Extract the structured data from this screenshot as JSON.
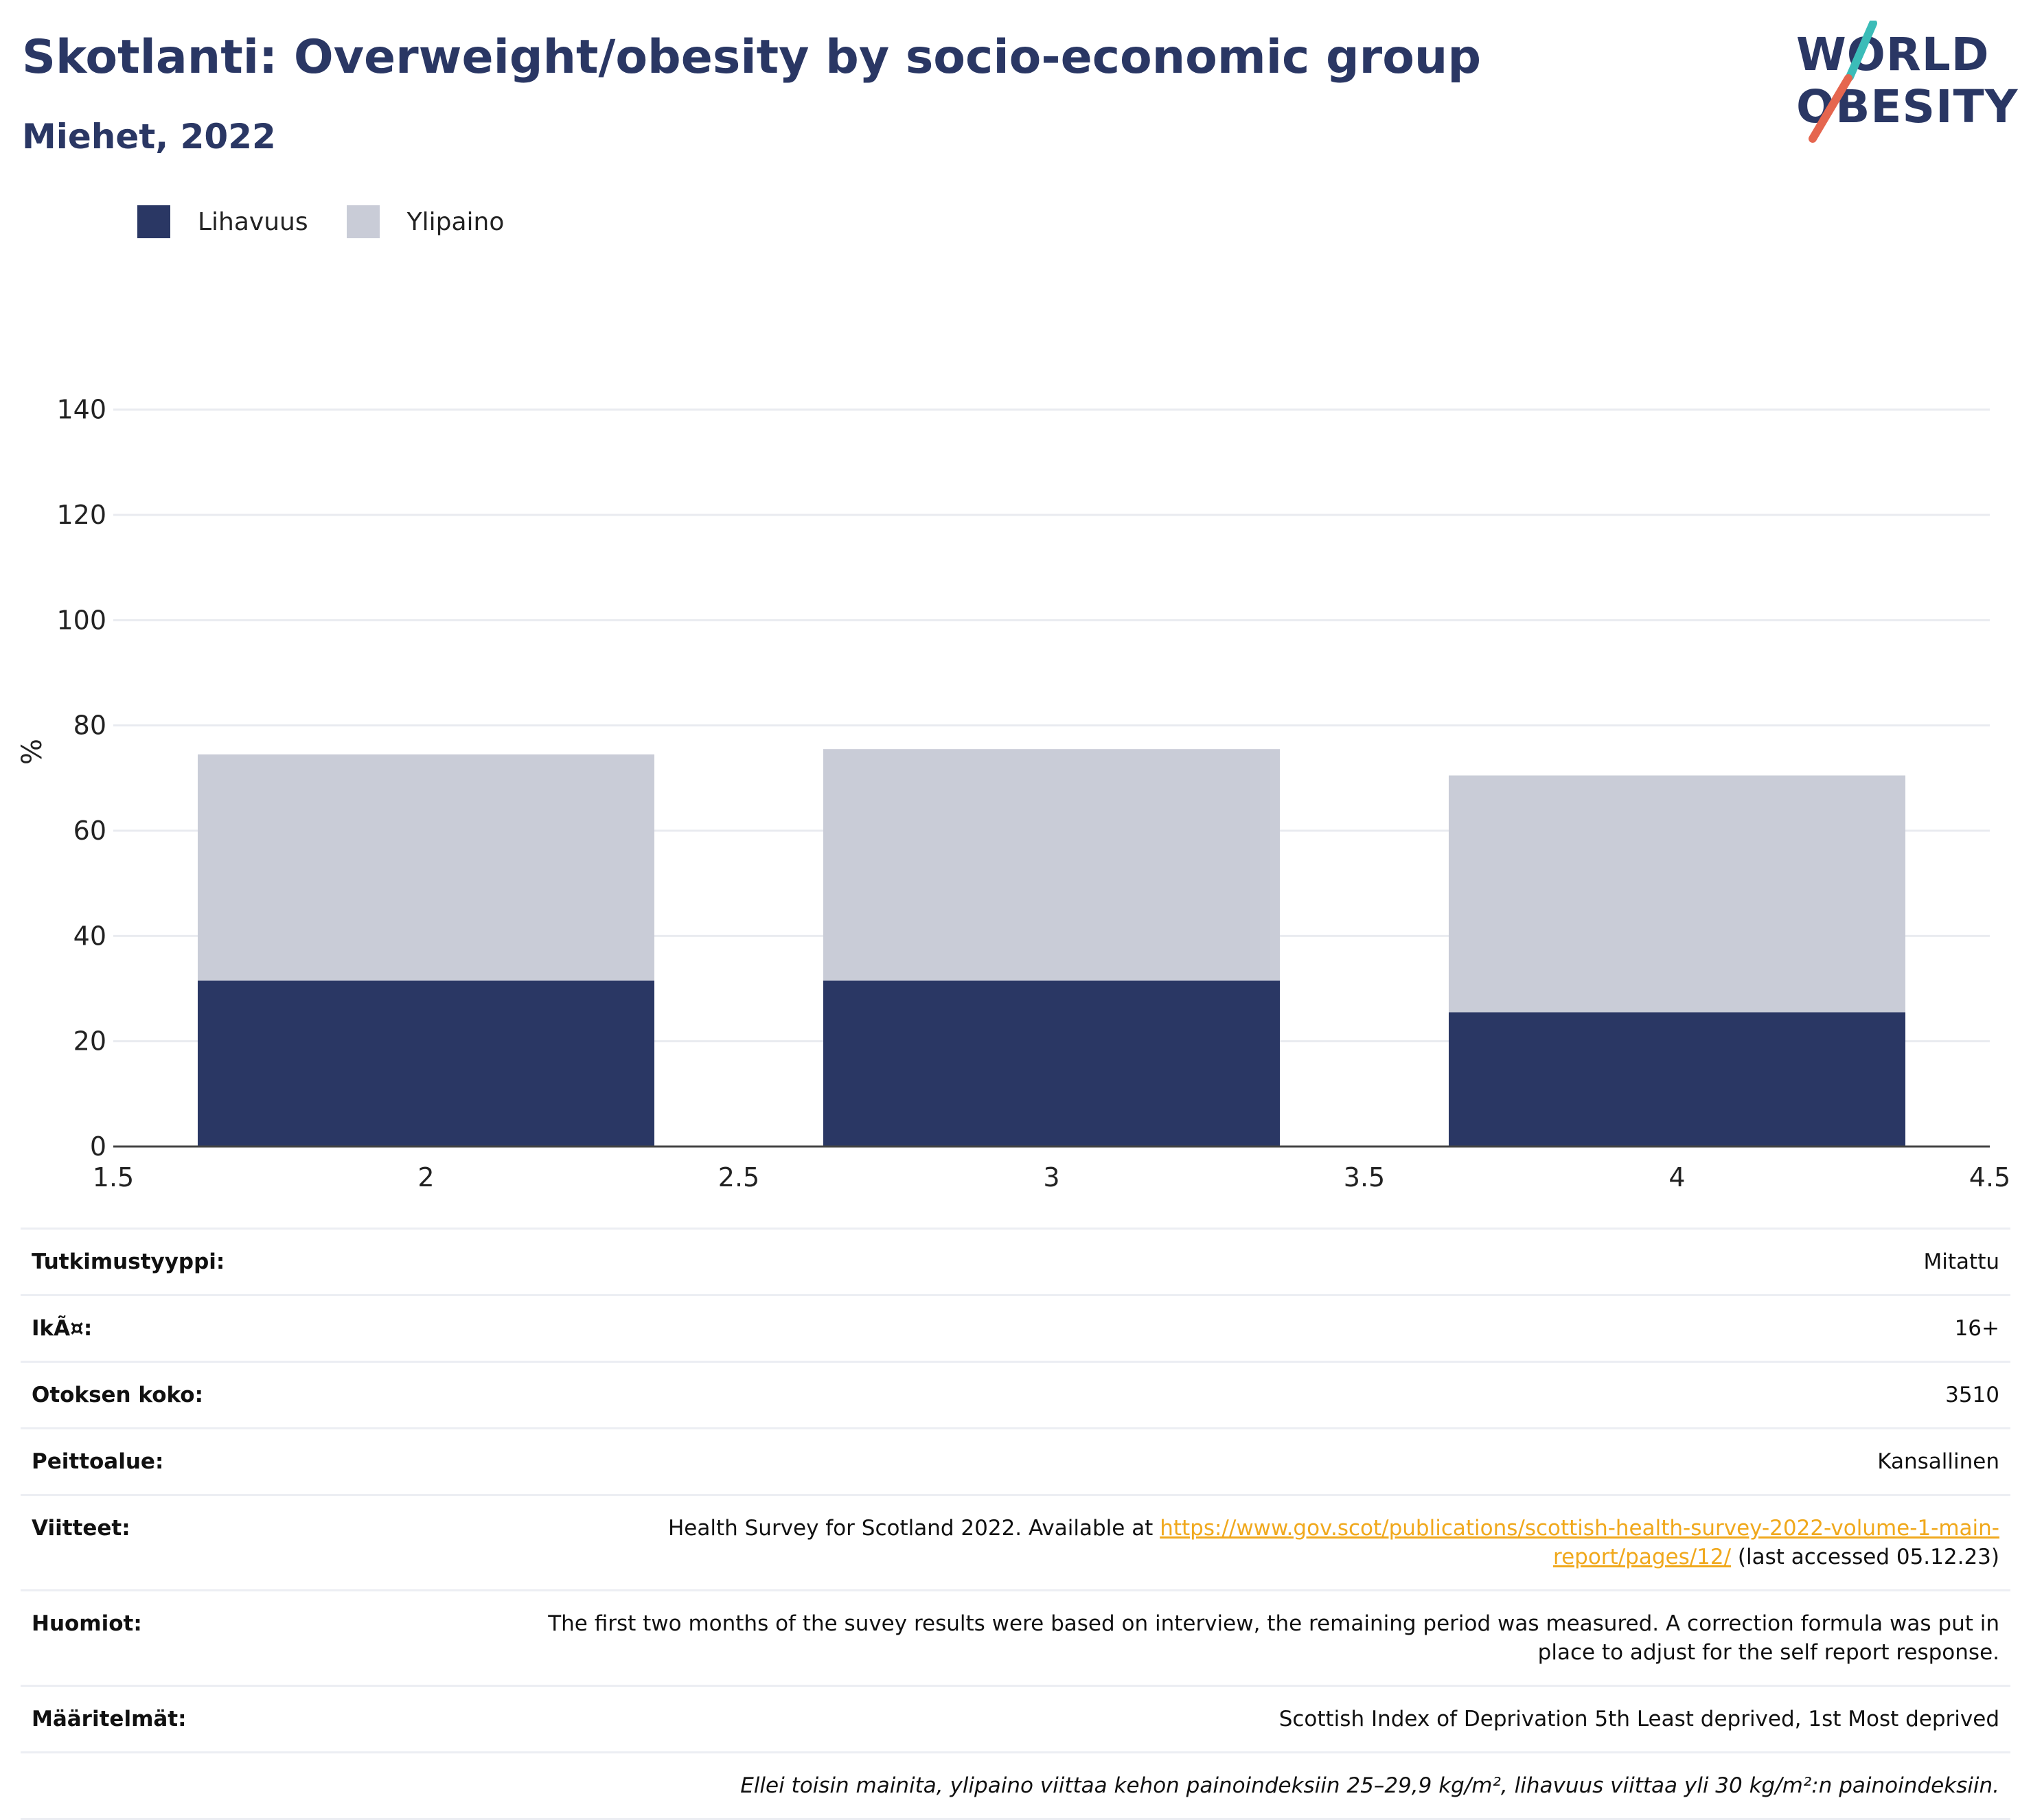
{
  "header": {
    "title": "Skotlanti: Overweight/obesity by socio-economic group",
    "subtitle": "Miehet, 2022"
  },
  "logo": {
    "line1": "WORLD",
    "line2": "OBESITY"
  },
  "colors": {
    "obesity": "#2a3764",
    "overweight": "#c9ccd7",
    "accent": "#f0a81c",
    "logo_teal": "#3bbcb8",
    "logo_red": "#e5664f"
  },
  "chart_data": {
    "type": "bar",
    "stacked": true,
    "x": [
      2,
      3,
      4
    ],
    "series": [
      {
        "name": "Lihavuus",
        "values": [
          31.5,
          31.5,
          25.5
        ]
      },
      {
        "name": "Ylipaino",
        "values": [
          43,
          44,
          45
        ]
      }
    ],
    "ylabel": "%",
    "xlim": [
      1.5,
      4.5
    ],
    "ylim": [
      0,
      150
    ],
    "xticks": [
      "1.5",
      "2",
      "2.5",
      "3",
      "3.5",
      "4",
      "4.5"
    ],
    "yticks": [
      "0",
      "20",
      "40",
      "60",
      "80",
      "100",
      "120",
      "140"
    ],
    "grid": true,
    "legend_position": "top-left"
  },
  "info": {
    "rows": [
      {
        "label": "Tutkimustyyppi:",
        "value": "Mitattu"
      },
      {
        "label": "IkÃ¤:",
        "value": "16+"
      },
      {
        "label": "Otoksen koko:",
        "value": "3510"
      },
      {
        "label": "Peittoalue:",
        "value": "Kansallinen"
      }
    ],
    "references": {
      "label": "Viitteet:",
      "prefix": "Health Survey for Scotland 2022. Available at ",
      "link": "https://www.gov.scot/publications/scottish-health-survey-2022-volume-1-main-report/pages/12/",
      "suffix": " (last accessed 05.12.23)"
    },
    "notes": {
      "label": "Huomiot:",
      "value": "The first two months of the suvey results were based on interview, the remaining period was measured. A correction formula was put in place to adjust for the self report response."
    },
    "definitions": {
      "label": "Määritelmät:",
      "value": "Scottish Index of Deprivation 5th Least deprived, 1st Most deprived"
    },
    "footnote": "Ellei toisin mainita, ylipaino viittaa kehon painoindeksiin 25–29,9 kg/m², lihavuus viittaa yli 30 kg/m²:n painoindeksiin."
  }
}
